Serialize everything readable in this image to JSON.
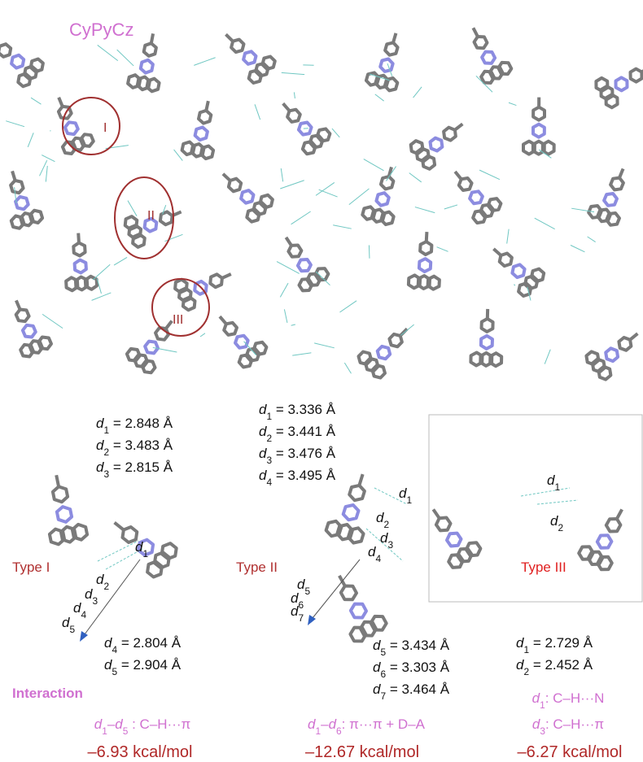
{
  "title": "CyPyCz",
  "circles": [
    "I",
    "II",
    "III"
  ],
  "type1": {
    "label": "Type I",
    "top": [
      {
        "sym": "d",
        "sub": "1",
        "rest": " = 2.848 Å"
      },
      {
        "sym": "d",
        "sub": "2",
        "rest": " = 3.483 Å"
      },
      {
        "sym": "d",
        "sub": "3",
        "rest": " = 2.815 Å"
      }
    ],
    "bottom": [
      {
        "sym": "d",
        "sub": "4",
        "rest": " = 2.804 Å"
      },
      {
        "sym": "d",
        "sub": "5",
        "rest": " = 2.904 Å"
      }
    ],
    "marks": [
      {
        "sym": "d",
        "sub": "1"
      },
      {
        "sym": "d",
        "sub": "2"
      },
      {
        "sym": "d",
        "sub": "3"
      },
      {
        "sym": "d",
        "sub": "4"
      },
      {
        "sym": "d",
        "sub": "5"
      }
    ]
  },
  "type2": {
    "label": "Type II",
    "top": [
      {
        "sym": "d",
        "sub": "1",
        "rest": " = 3.336 Å"
      },
      {
        "sym": "d",
        "sub": "2",
        "rest": " = 3.441 Å"
      },
      {
        "sym": "d",
        "sub": "3",
        "rest": " = 3.476 Å"
      },
      {
        "sym": "d",
        "sub": "4",
        "rest": " = 3.495 Å"
      }
    ],
    "bottom": [
      {
        "sym": "d",
        "sub": "5",
        "rest": " = 3.434 Å"
      },
      {
        "sym": "d",
        "sub": "6",
        "rest": " = 3.303 Å"
      },
      {
        "sym": "d",
        "sub": "7",
        "rest": " = 3.464 Å"
      }
    ],
    "marks": [
      {
        "sym": "d",
        "sub": "1"
      },
      {
        "sym": "d",
        "sub": "2"
      },
      {
        "sym": "d",
        "sub": "3"
      },
      {
        "sym": "d",
        "sub": "4"
      },
      {
        "sym": "d",
        "sub": "5"
      },
      {
        "sym": "d",
        "sub": "6"
      },
      {
        "sym": "d",
        "sub": "7"
      }
    ]
  },
  "type3": {
    "label": "Type III",
    "bottom": [
      {
        "sym": "d",
        "sub": "1",
        "rest": " = 2.729 Å"
      },
      {
        "sym": "d",
        "sub": "2",
        "rest": " = 2.452 Å"
      }
    ],
    "marks": [
      {
        "sym": "d",
        "sub": "1"
      },
      {
        "sym": "d",
        "sub": "2"
      }
    ]
  },
  "interaction_heading": "Interaction",
  "interactions": [
    [
      {
        "sym": "d",
        "sub": "1"
      },
      {
        "rest": "–"
      },
      {
        "sym": "d",
        "sub": "5"
      },
      {
        "rest": " : C–H···π"
      }
    ],
    [
      {
        "sym": "d",
        "sub": "1"
      },
      {
        "rest": "–"
      },
      {
        "sym": "d",
        "sub": "6"
      },
      {
        "rest": ": π···π + D–A"
      }
    ],
    [
      {
        "sym": "d",
        "sub": "1"
      },
      {
        "rest": ": C–H···N"
      }
    ],
    [
      {
        "sym": "d",
        "sub": "3"
      },
      {
        "rest": ": C–H···π"
      }
    ]
  ],
  "energies": [
    "–6.93 kcal/mol",
    "–12.67 kcal/mol",
    "–6.27 kcal/mol"
  ]
}
